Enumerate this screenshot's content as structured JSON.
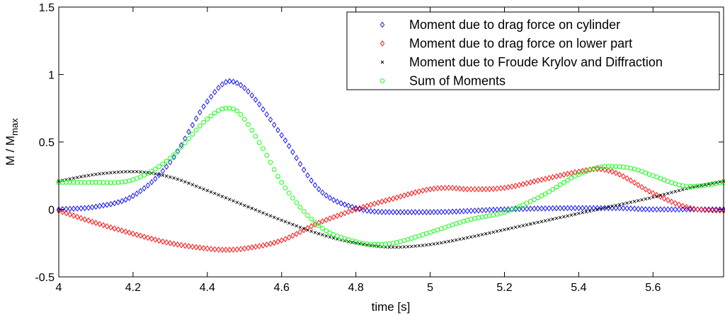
{
  "chart_data": {
    "type": "scatter",
    "title": "",
    "xlabel": "time [s]",
    "ylabel_main": "M / M",
    "ylabel_sub": "max",
    "xlim": [
      4.0,
      5.79
    ],
    "ylim": [
      -0.5,
      1.5
    ],
    "x_ticks": [
      4,
      4.2,
      4.4,
      4.6,
      4.8,
      5,
      5.2,
      5.4,
      5.6
    ],
    "x_tick_labels": [
      "4",
      "4.2",
      "4.4",
      "4.6",
      "4.8",
      "5",
      "5.2",
      "5.4",
      "5.6"
    ],
    "y_ticks": [
      -0.5,
      0,
      0.5,
      1,
      1.5
    ],
    "y_tick_labels": [
      "-0.5",
      "0",
      "0.5",
      "1",
      "1.5"
    ],
    "grid": false,
    "legend_position": "top-right",
    "sample_step": 0.01,
    "series": [
      {
        "name": "Moment due to drag force on cylinder",
        "marker": "diamond",
        "color": "#0000ff",
        "points": [
          [
            4.0,
            0.0
          ],
          [
            4.1,
            0.02
          ],
          [
            4.2,
            0.1
          ],
          [
            4.3,
            0.35
          ],
          [
            4.4,
            0.8
          ],
          [
            4.46,
            0.95
          ],
          [
            4.5,
            0.9
          ],
          [
            4.6,
            0.55
          ],
          [
            4.7,
            0.15
          ],
          [
            4.8,
            0.01
          ],
          [
            4.9,
            -0.02
          ],
          [
            5.0,
            -0.02
          ],
          [
            5.2,
            0.0
          ],
          [
            5.4,
            0.01
          ],
          [
            5.5,
            0.01
          ],
          [
            5.6,
            0.0
          ],
          [
            5.79,
            0.0
          ]
        ]
      },
      {
        "name": "Moment due to drag force on lower part",
        "marker": "diamond",
        "color": "#ff0000",
        "points": [
          [
            4.0,
            -0.01
          ],
          [
            4.1,
            -0.1
          ],
          [
            4.2,
            -0.18
          ],
          [
            4.3,
            -0.25
          ],
          [
            4.4,
            -0.29
          ],
          [
            4.45,
            -0.3
          ],
          [
            4.5,
            -0.29
          ],
          [
            4.6,
            -0.23
          ],
          [
            4.7,
            -0.1
          ],
          [
            4.8,
            0.0
          ],
          [
            4.9,
            0.08
          ],
          [
            5.0,
            0.15
          ],
          [
            5.05,
            0.16
          ],
          [
            5.1,
            0.15
          ],
          [
            5.2,
            0.16
          ],
          [
            5.3,
            0.22
          ],
          [
            5.4,
            0.28
          ],
          [
            5.45,
            0.3
          ],
          [
            5.5,
            0.27
          ],
          [
            5.6,
            0.12
          ],
          [
            5.7,
            0.01
          ],
          [
            5.79,
            -0.01
          ]
        ]
      },
      {
        "name": "Moment due to Froude Krylov and Diffraction",
        "marker": "x",
        "color": "#000000",
        "points": [
          [
            4.0,
            0.21
          ],
          [
            4.1,
            0.26
          ],
          [
            4.2,
            0.28
          ],
          [
            4.3,
            0.24
          ],
          [
            4.4,
            0.14
          ],
          [
            4.5,
            0.03
          ],
          [
            4.6,
            -0.08
          ],
          [
            4.7,
            -0.18
          ],
          [
            4.8,
            -0.25
          ],
          [
            4.9,
            -0.28
          ],
          [
            5.0,
            -0.26
          ],
          [
            5.1,
            -0.21
          ],
          [
            5.2,
            -0.15
          ],
          [
            5.3,
            -0.09
          ],
          [
            5.4,
            -0.03
          ],
          [
            5.5,
            0.03
          ],
          [
            5.6,
            0.09
          ],
          [
            5.7,
            0.16
          ],
          [
            5.79,
            0.21
          ]
        ]
      },
      {
        "name": "Sum of Moments",
        "marker": "circle",
        "color": "#00ff00",
        "points": [
          [
            4.0,
            0.2
          ],
          [
            4.1,
            0.2
          ],
          [
            4.2,
            0.22
          ],
          [
            4.3,
            0.38
          ],
          [
            4.4,
            0.67
          ],
          [
            4.45,
            0.75
          ],
          [
            4.48,
            0.73
          ],
          [
            4.55,
            0.45
          ],
          [
            4.6,
            0.2
          ],
          [
            4.7,
            -0.12
          ],
          [
            4.8,
            -0.24
          ],
          [
            4.85,
            -0.26
          ],
          [
            4.9,
            -0.25
          ],
          [
            5.0,
            -0.17
          ],
          [
            5.1,
            -0.08
          ],
          [
            5.2,
            -0.02
          ],
          [
            5.3,
            0.1
          ],
          [
            5.4,
            0.26
          ],
          [
            5.48,
            0.32
          ],
          [
            5.55,
            0.3
          ],
          [
            5.6,
            0.25
          ],
          [
            5.7,
            0.17
          ],
          [
            5.79,
            0.2
          ]
        ]
      }
    ]
  }
}
